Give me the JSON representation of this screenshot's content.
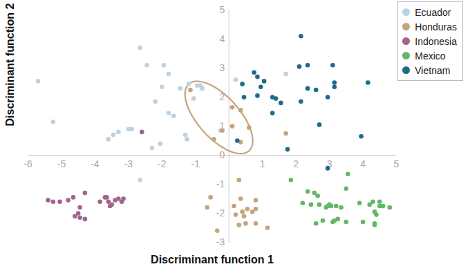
{
  "chart_data": {
    "type": "scatter",
    "x_label": "Discriminant function 1",
    "y_label": "Discriminant function 2",
    "xlim": [
      -6,
      5
    ],
    "ylim": [
      -3,
      5
    ],
    "xticks": [
      -6,
      -5,
      -4,
      -3,
      -2,
      -1,
      1,
      2,
      3,
      4,
      5
    ],
    "yticks": [
      -3,
      -2,
      -1,
      0,
      1,
      2,
      3,
      4,
      5
    ],
    "legend": "top-right",
    "series": [
      {
        "name": "Ecuador",
        "color": "#bcd2e3",
        "values": [
          [
            -5.7,
            2.55
          ],
          [
            -5.25,
            1.15
          ],
          [
            -3.6,
            0.55
          ],
          [
            -3.45,
            0.7
          ],
          [
            -3.3,
            0.8
          ],
          [
            -3.0,
            0.9
          ],
          [
            -2.9,
            0.9
          ],
          [
            -2.65,
            3.7
          ],
          [
            -2.45,
            3.1
          ],
          [
            -2.3,
            0.25
          ],
          [
            -2.2,
            1.85
          ],
          [
            -2.05,
            0.4
          ],
          [
            -2.0,
            2.35
          ],
          [
            -1.95,
            3.1
          ],
          [
            -1.8,
            2.8
          ],
          [
            -1.8,
            1.45
          ],
          [
            -1.65,
            1.35
          ],
          [
            -1.45,
            2.3
          ],
          [
            -1.3,
            0.7
          ],
          [
            -1.25,
            0.55
          ],
          [
            -1.2,
            2.45
          ],
          [
            -1.05,
            1.95
          ],
          [
            -0.95,
            2.4
          ],
          [
            -0.85,
            2.4
          ],
          [
            -0.8,
            2.3
          ],
          [
            -0.25,
            0.85
          ],
          [
            0.2,
            2.6
          ],
          [
            1.7,
            2.8
          ],
          [
            -2.65,
            -0.85
          ]
        ]
      },
      {
        "name": "Honduras",
        "color": "#c5a47c",
        "values": [
          [
            -1.15,
            2.25
          ],
          [
            -0.45,
            0.55
          ],
          [
            -0.2,
            0.85
          ],
          [
            0.1,
            1.65
          ],
          [
            0.1,
            1.0
          ],
          [
            0.35,
            1.55
          ],
          [
            0.35,
            0.45
          ],
          [
            0.6,
            0.95
          ],
          [
            1.7,
            0.75
          ],
          [
            0.3,
            -0.85
          ],
          [
            -0.55,
            -1.45
          ],
          [
            -0.65,
            -1.8
          ],
          [
            -0.35,
            -2.6
          ],
          [
            0.15,
            -1.75
          ],
          [
            0.2,
            -2.05
          ],
          [
            0.4,
            -1.95
          ],
          [
            0.45,
            -2.1
          ],
          [
            0.55,
            -1.85
          ],
          [
            0.7,
            -1.95
          ],
          [
            0.8,
            -1.85
          ],
          [
            0.8,
            -1.55
          ],
          [
            0.3,
            -2.4
          ],
          [
            0.5,
            -2.35
          ],
          [
            0.8,
            -2.35
          ],
          [
            1.15,
            -2.5
          ],
          [
            0.35,
            -1.5
          ]
        ]
      },
      {
        "name": "Indonesia",
        "color": "#a2648f",
        "values": [
          [
            -2.6,
            0.8
          ],
          [
            -5.4,
            -1.55
          ],
          [
            -5.25,
            -1.6
          ],
          [
            -5.05,
            -1.6
          ],
          [
            -4.8,
            -1.55
          ],
          [
            -4.65,
            -1.45
          ],
          [
            -4.45,
            -1.8
          ],
          [
            -4.5,
            -2.0
          ],
          [
            -4.45,
            -2.15
          ],
          [
            -4.3,
            -2.2
          ],
          [
            -4.3,
            -1.3
          ],
          [
            -4.6,
            -2.1
          ],
          [
            -3.85,
            -1.6
          ],
          [
            -3.7,
            -1.45
          ],
          [
            -3.65,
            -1.45
          ],
          [
            -3.6,
            -1.6
          ],
          [
            -3.55,
            -1.75
          ],
          [
            -3.5,
            -1.7
          ],
          [
            -3.4,
            -1.55
          ],
          [
            -3.3,
            -1.5
          ],
          [
            -3.15,
            -1.5
          ],
          [
            -3.2,
            -1.6
          ]
        ]
      },
      {
        "name": "Mexico",
        "color": "#62b866",
        "values": [
          [
            1.85,
            -0.85
          ],
          [
            2.2,
            -1.65
          ],
          [
            2.35,
            -1.25
          ],
          [
            2.45,
            -1.7
          ],
          [
            2.55,
            -1.3
          ],
          [
            2.65,
            -1.4
          ],
          [
            2.7,
            -1.7
          ],
          [
            2.8,
            -2.25
          ],
          [
            2.9,
            -1.8
          ],
          [
            2.95,
            -1.75
          ],
          [
            3.0,
            -1.7
          ],
          [
            3.05,
            -1.75
          ],
          [
            3.1,
            -2.3
          ],
          [
            3.15,
            -2.25
          ],
          [
            3.2,
            -1.75
          ],
          [
            3.25,
            -2.2
          ],
          [
            3.35,
            -1.8
          ],
          [
            3.5,
            -2.3
          ],
          [
            3.55,
            -0.65
          ],
          [
            3.5,
            -1.15
          ],
          [
            3.9,
            -1.65
          ],
          [
            4.0,
            -2.3
          ],
          [
            4.2,
            -1.7
          ],
          [
            4.3,
            -1.6
          ],
          [
            4.35,
            -1.95
          ],
          [
            4.4,
            -2.05
          ],
          [
            4.5,
            -1.75
          ],
          [
            4.5,
            -1.6
          ],
          [
            4.6,
            -1.75
          ],
          [
            4.8,
            -1.8
          ],
          [
            4.35,
            -2.35
          ],
          [
            4.35,
            -2.4
          ],
          [
            2.6,
            -2.35
          ]
        ]
      },
      {
        "name": "Vietnam",
        "color": "#1d6b8b",
        "values": [
          [
            2.15,
            4.1
          ],
          [
            0.75,
            2.85
          ],
          [
            0.85,
            2.7
          ],
          [
            0.95,
            2.35
          ],
          [
            1.05,
            2.55
          ],
          [
            0.4,
            2.45
          ],
          [
            0.45,
            2.0
          ],
          [
            0.85,
            2.05
          ],
          [
            1.3,
            2.0
          ],
          [
            1.3,
            1.45
          ],
          [
            1.4,
            1.95
          ],
          [
            1.55,
            1.8
          ],
          [
            2.1,
            3.05
          ],
          [
            2.35,
            3.1
          ],
          [
            2.15,
            1.85
          ],
          [
            2.35,
            2.3
          ],
          [
            2.6,
            2.25
          ],
          [
            2.7,
            1.05
          ],
          [
            2.95,
            2.0
          ],
          [
            3.1,
            3.1
          ],
          [
            3.15,
            2.5
          ],
          [
            3.15,
            2.35
          ],
          [
            4.15,
            2.5
          ],
          [
            3.95,
            0.65
          ],
          [
            2.95,
            -0.45
          ],
          [
            1.75,
            0.2
          ],
          [
            0.25,
            0.5
          ]
        ]
      }
    ],
    "ellipse": {
      "series": "Honduras",
      "center": [
        -0.3,
        1.3
      ],
      "axis_end_1": [
        0.6,
        0.15
      ],
      "axis_end_2": [
        0.16,
        1.78
      ]
    }
  }
}
